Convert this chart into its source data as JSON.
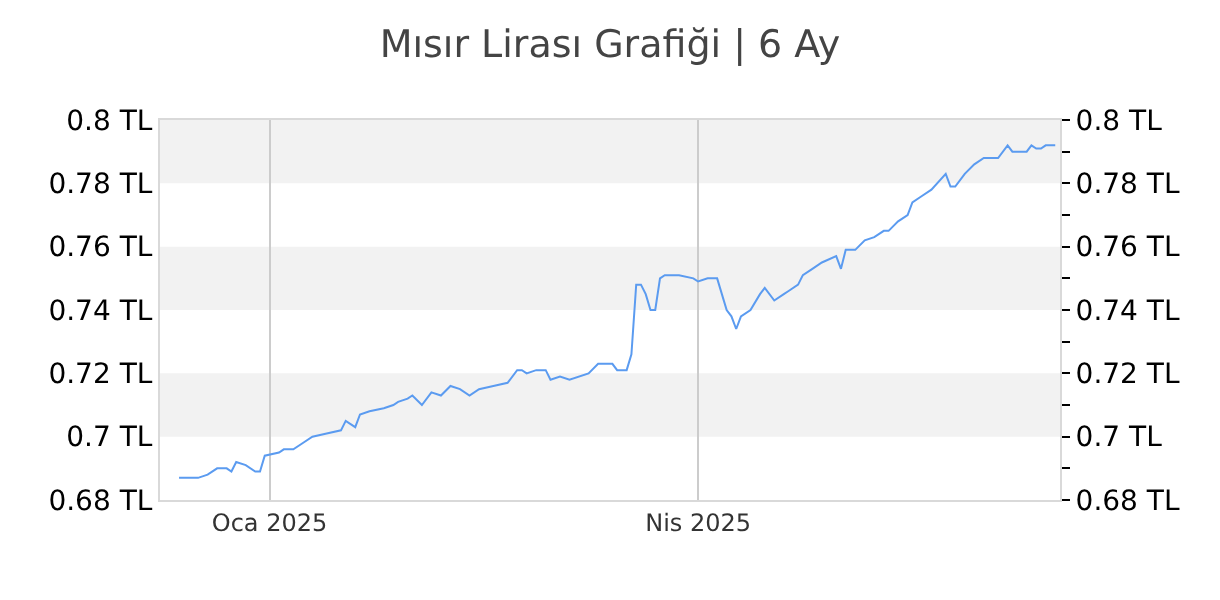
{
  "chart_data": {
    "type": "line",
    "title": "Mısır Lirası Grafiği | 6 Ay",
    "x": [
      "2024-12-13",
      "2024-12-17",
      "2024-12-19",
      "2024-12-21",
      "2024-12-23",
      "2024-12-24",
      "2024-12-25",
      "2024-12-27",
      "2024-12-29",
      "2024-12-30",
      "2024-12-31",
      "2025-01-03",
      "2025-01-04",
      "2025-01-06",
      "2025-01-08",
      "2025-01-10",
      "2025-01-13",
      "2025-01-16",
      "2025-01-17",
      "2025-01-19",
      "2025-01-20",
      "2025-01-22",
      "2025-01-25",
      "2025-01-27",
      "2025-01-28",
      "2025-01-30",
      "2025-01-31",
      "2025-02-02",
      "2025-02-04",
      "2025-02-06",
      "2025-02-08",
      "2025-02-10",
      "2025-02-12",
      "2025-02-14",
      "2025-02-17",
      "2025-02-20",
      "2025-02-22",
      "2025-02-23",
      "2025-02-24",
      "2025-02-26",
      "2025-02-28",
      "2025-03-01",
      "2025-03-03",
      "2025-03-05",
      "2025-03-09",
      "2025-03-11",
      "2025-03-14",
      "2025-03-15",
      "2025-03-17",
      "2025-03-18",
      "2025-03-19",
      "2025-03-20",
      "2025-03-21",
      "2025-03-22",
      "2025-03-23",
      "2025-03-24",
      "2025-03-25",
      "2025-03-28",
      "2025-03-31",
      "2025-04-01",
      "2025-04-03",
      "2025-04-05",
      "2025-04-07",
      "2025-04-08",
      "2025-04-09",
      "2025-04-10",
      "2025-04-12",
      "2025-04-14",
      "2025-04-15",
      "2025-04-17",
      "2025-04-19",
      "2025-04-20",
      "2025-04-22",
      "2025-04-23",
      "2025-04-25",
      "2025-04-27",
      "2025-04-30",
      "2025-05-01",
      "2025-05-02",
      "2025-05-04",
      "2025-05-06",
      "2025-05-08",
      "2025-05-10",
      "2025-05-11",
      "2025-05-13",
      "2025-05-15",
      "2025-05-16",
      "2025-05-18",
      "2025-05-20",
      "2025-05-23",
      "2025-05-24",
      "2025-05-25",
      "2025-05-27",
      "2025-05-29",
      "2025-05-31",
      "2025-06-02",
      "2025-06-03",
      "2025-06-05",
      "2025-06-06",
      "2025-06-09",
      "2025-06-10",
      "2025-06-11",
      "2025-06-12",
      "2025-06-13",
      "2025-06-15"
    ],
    "series": [
      {
        "color": "#5b9bf0",
        "values": [
          0.687,
          0.687,
          0.688,
          0.69,
          0.69,
          0.689,
          0.692,
          0.691,
          0.689,
          0.689,
          0.694,
          0.695,
          0.696,
          0.696,
          0.698,
          0.7,
          0.701,
          0.702,
          0.705,
          0.703,
          0.707,
          0.708,
          0.709,
          0.71,
          0.711,
          0.712,
          0.713,
          0.71,
          0.714,
          0.713,
          0.716,
          0.715,
          0.713,
          0.715,
          0.716,
          0.717,
          0.721,
          0.721,
          0.72,
          0.721,
          0.721,
          0.718,
          0.719,
          0.718,
          0.72,
          0.723,
          0.723,
          0.721,
          0.721,
          0.726,
          0.748,
          0.748,
          0.745,
          0.74,
          0.74,
          0.75,
          0.751,
          0.751,
          0.75,
          0.749,
          0.75,
          0.75,
          0.74,
          0.738,
          0.734,
          0.738,
          0.74,
          0.745,
          0.747,
          0.743,
          0.745,
          0.746,
          0.748,
          0.751,
          0.753,
          0.755,
          0.757,
          0.753,
          0.759,
          0.759,
          0.762,
          0.763,
          0.765,
          0.765,
          0.768,
          0.77,
          0.774,
          0.776,
          0.778,
          0.783,
          0.779,
          0.779,
          0.783,
          0.786,
          0.788,
          0.788,
          0.788,
          0.792,
          0.79,
          0.79,
          0.792,
          0.791,
          0.791,
          0.792,
          0.792
        ]
      }
    ],
    "xlim": [
      "2024-12-09",
      "2025-06-16"
    ],
    "xticks": [
      {
        "value": "2025-01-01",
        "label": "Oca 2025"
      },
      {
        "value": "2025-04-01",
        "label": "Nis 2025"
      }
    ],
    "ylim": [
      0.68,
      0.8
    ],
    "yticks": [
      {
        "value": 0.68,
        "label": "0.68 TL"
      },
      {
        "value": 0.7,
        "label": "0.7 TL"
      },
      {
        "value": 0.72,
        "label": "0.72 TL"
      },
      {
        "value": 0.74,
        "label": "0.74 TL"
      },
      {
        "value": 0.76,
        "label": "0.76 TL"
      },
      {
        "value": 0.78,
        "label": "0.78 TL"
      },
      {
        "value": 0.8,
        "label": "0.8 TL"
      }
    ],
    "y2lim": [
      0.68,
      0.8
    ],
    "y2ticks": [
      {
        "value": 0.68,
        "label": "0.68 TL"
      },
      {
        "value": 0.69,
        "label": null
      },
      {
        "value": 0.7,
        "label": "0.7 TL"
      },
      {
        "value": 0.71,
        "label": null
      },
      {
        "value": 0.72,
        "label": "0.72 TL"
      },
      {
        "value": 0.73,
        "label": null
      },
      {
        "value": 0.74,
        "label": "0.74 TL"
      },
      {
        "value": 0.75,
        "label": null
      },
      {
        "value": 0.76,
        "label": "0.76 TL"
      },
      {
        "value": 0.77,
        "label": null
      },
      {
        "value": 0.78,
        "label": "0.78 TL"
      },
      {
        "value": 0.79,
        "label": null
      },
      {
        "value": 0.8,
        "label": "0.8 TL"
      }
    ],
    "bands": [
      {
        "axis": "y",
        "from": 0.7,
        "to": 0.72,
        "color": "#f2f2f2"
      },
      {
        "axis": "y",
        "from": 0.74,
        "to": 0.76,
        "color": "#f2f2f2"
      },
      {
        "axis": "y",
        "from": 0.78,
        "to": 0.8,
        "color": "#f2f2f2"
      }
    ],
    "grid": "x",
    "marker": "none",
    "line_style": "solid"
  }
}
